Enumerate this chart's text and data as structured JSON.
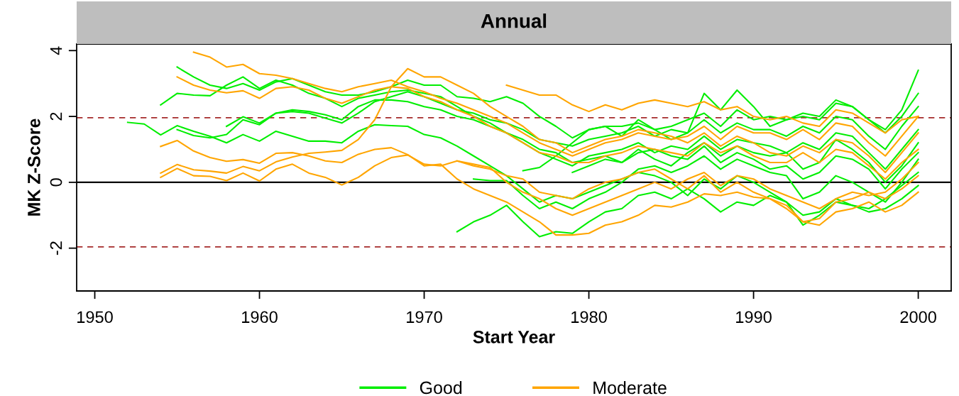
{
  "chart_data": {
    "type": "line",
    "title": "Annual",
    "xlabel": "Start Year",
    "ylabel": "MK Z-Score",
    "xlim": [
      1948.9,
      2002
    ],
    "xticks": [
      1950,
      1960,
      1970,
      1980,
      1990,
      2000
    ],
    "ylim": [
      -3.3,
      4.2
    ],
    "yticks": [
      -2,
      0,
      2,
      4
    ],
    "grid": false,
    "legend": "bottom",
    "marker": "none",
    "line_style": "solid",
    "ref_lines": [
      {
        "axis": "y",
        "value": 1.96,
        "color": "#a52a2a",
        "line_style": "dashed"
      },
      {
        "axis": "y",
        "value": 0,
        "color": "#000000",
        "line_style": "solid"
      },
      {
        "axis": "y",
        "value": -1.96,
        "color": "#a52a2a",
        "line_style": "dashed"
      }
    ],
    "series": [
      {
        "name": "Good",
        "color": "#00ee00",
        "x": [
          1955,
          1956,
          1957,
          1958,
          1959,
          1960,
          1961,
          1962,
          1963,
          1964,
          1965,
          1966,
          1967,
          1968,
          1969,
          1970,
          1971,
          1972,
          1973,
          1974,
          1975,
          1976,
          1977,
          1978,
          1979,
          1980,
          1981,
          1982,
          1983,
          1984,
          1985,
          1986,
          1987,
          1988,
          1989,
          1990,
          1991,
          1992,
          1993,
          1994,
          1995,
          1996,
          1997,
          1998,
          1999,
          2000
        ],
        "values": [
          3.5,
          3.2,
          2.95,
          2.85,
          3.0,
          2.8,
          3.05,
          3.15,
          2.95,
          2.75,
          2.65,
          2.65,
          2.75,
          2.9,
          3.1,
          2.95,
          2.95,
          2.6,
          2.55,
          2.45,
          2.6,
          2.4,
          2.0,
          1.7,
          1.35,
          1.6,
          1.7,
          1.7,
          1.8,
          1.6,
          1.7,
          1.9,
          2.1,
          1.7,
          2.2,
          1.9,
          2.0,
          1.9,
          2.0,
          1.9,
          2.4,
          2.3,
          1.9,
          1.6,
          2.2,
          3.4
        ]
      },
      {
        "color": "#00ee00",
        "x": [
          1954,
          1955,
          1956,
          1957,
          1958,
          1959,
          1960,
          1961,
          1962,
          1963,
          1964,
          1965,
          1966,
          1967,
          1968,
          1969,
          1970,
          1971,
          1972,
          1973,
          1974,
          1975,
          1976,
          1977,
          1978,
          1979,
          1980,
          1981,
          1982,
          1983,
          1984,
          1985,
          1986,
          1987,
          1988,
          1989,
          1990,
          1991,
          1992,
          1993,
          1994,
          1995,
          1996,
          1997,
          1998,
          1999,
          2000
        ],
        "values": [
          2.35,
          2.7,
          2.65,
          2.63,
          2.95,
          3.2,
          2.85,
          3.1,
          2.95,
          2.7,
          2.55,
          2.3,
          2.55,
          2.65,
          2.75,
          2.8,
          2.7,
          2.6,
          2.3,
          2.0,
          1.8,
          1.5,
          1.2,
          0.9,
          0.7,
          0.5,
          0.8,
          0.9,
          1.0,
          1.2,
          0.9,
          1.1,
          1.0,
          1.4,
          1.0,
          1.3,
          1.2,
          1.1,
          0.9,
          1.2,
          1.0,
          1.5,
          1.4,
          0.9,
          0.4,
          1.0,
          1.6
        ]
      },
      {
        "color": "#00ee00",
        "x": [
          1952,
          1953,
          1954,
          1955,
          1956,
          1957,
          1958,
          1959,
          1960,
          1961,
          1962,
          1963,
          1964,
          1965,
          1966,
          1967,
          1968,
          1969,
          1970,
          1971,
          1972,
          1973,
          1974,
          1975,
          1976,
          1977,
          1978,
          1979,
          1980,
          1981,
          1982,
          1983,
          1984,
          1985,
          1986,
          1987,
          1988,
          1989,
          1990,
          1991,
          1992,
          1993,
          1994,
          1995,
          1996,
          1997,
          1998,
          1999,
          2000
        ],
        "values": [
          1.82,
          1.77,
          1.44,
          1.72,
          1.55,
          1.4,
          1.2,
          1.45,
          1.25,
          1.55,
          1.4,
          1.25,
          1.25,
          1.2,
          1.55,
          1.75,
          1.72,
          1.7,
          1.45,
          1.35,
          1.1,
          0.8,
          0.5,
          0.2,
          -0.2,
          -0.6,
          -0.4,
          -0.5,
          -0.3,
          -0.1,
          0.1,
          0.3,
          0.2,
          0.0,
          -0.4,
          0.1,
          -0.2,
          0.2,
          0.0,
          -0.3,
          -0.6,
          -1.3,
          -1.0,
          -0.6,
          -0.7,
          -0.8,
          -0.5,
          -0.1,
          0.3
        ]
      },
      {
        "color": "#00ee00",
        "x": [
          1955,
          1956,
          1957,
          1958,
          1959,
          1960,
          1961,
          1962,
          1963,
          1964,
          1965,
          1966,
          1967,
          1968,
          1969,
          1970,
          1971,
          1972,
          1973,
          1974,
          1975,
          1976,
          1977,
          1978,
          1979,
          1980,
          1981,
          1982,
          1983,
          1984,
          1985,
          1986,
          1987,
          1988,
          1989,
          1990,
          1991,
          1992,
          1993,
          1994,
          1995,
          1996,
          1997,
          1998,
          1999,
          2000
        ],
        "values": [
          1.6,
          1.42,
          1.35,
          1.45,
          1.9,
          1.75,
          2.1,
          2.2,
          2.15,
          2.05,
          1.9,
          2.3,
          2.5,
          2.5,
          2.45,
          2.3,
          2.2,
          2.0,
          1.9,
          1.7,
          1.5,
          1.3,
          1.0,
          0.9,
          0.6,
          0.7,
          0.8,
          0.6,
          0.9,
          1.0,
          0.8,
          0.7,
          1.1,
          0.6,
          0.9,
          0.7,
          0.4,
          0.5,
          0.1,
          0.3,
          0.8,
          0.7,
          0.4,
          -0.2,
          0.4,
          0.9
        ]
      },
      {
        "color": "#00ee00",
        "x": [
          1958,
          1959,
          1960,
          1961,
          1962,
          1963,
          1964,
          1965,
          1966,
          1967,
          1968,
          1969,
          1970,
          1971,
          1972,
          1973,
          1974,
          1975,
          1976,
          1977,
          1978,
          1979,
          1980,
          1981,
          1982,
          1983,
          1984,
          1985,
          1986,
          1987,
          1988,
          1989,
          1990,
          1991,
          1992,
          1993,
          1994,
          1995,
          1996,
          1997,
          1998,
          1999,
          2000
        ],
        "values": [
          1.7,
          1.99,
          1.8,
          2.1,
          2.15,
          2.1,
          1.95,
          1.8,
          2.1,
          2.45,
          2.6,
          2.75,
          2.6,
          2.4,
          2.2,
          2.1,
          1.9,
          1.8,
          1.6,
          1.3,
          1.2,
          1.1,
          1.3,
          1.4,
          1.5,
          1.7,
          1.4,
          1.6,
          1.5,
          1.9,
          1.5,
          1.8,
          1.6,
          1.6,
          1.4,
          1.7,
          1.5,
          2.0,
          1.9,
          1.4,
          1.0,
          1.7,
          2.3
        ]
      },
      {
        "color": "#00ee00",
        "x": [
          1972,
          1973,
          1974,
          1975,
          1976,
          1977,
          1978,
          1979,
          1980,
          1981,
          1982,
          1983,
          1984,
          1985,
          1986,
          1987,
          1988,
          1989,
          1990,
          1991,
          1992,
          1993,
          1994,
          1995,
          1996,
          1997,
          1998,
          1999,
          2000
        ],
        "values": [
          -1.5,
          -1.2,
          -1.0,
          -0.7,
          -1.2,
          -1.65,
          -1.5,
          -1.55,
          -1.2,
          -0.9,
          -0.8,
          -0.4,
          -0.3,
          -0.5,
          -0.2,
          -0.5,
          -0.9,
          -0.6,
          -0.7,
          -0.4,
          -0.6,
          -1.0,
          -0.9,
          -0.5,
          -0.7,
          -0.9,
          -0.8,
          -0.5,
          -0.1
        ]
      },
      {
        "color": "#00ee00",
        "x": [
          1973,
          1974,
          1975,
          1976,
          1977,
          1978,
          1979,
          1980,
          1981,
          1982,
          1983,
          1984,
          1985,
          1986,
          1987,
          1988,
          1989,
          1990,
          1991,
          1992,
          1993,
          1994,
          1995,
          1996,
          1997,
          1998,
          1999,
          2000
        ],
        "values": [
          0.1,
          0.05,
          0.05,
          -0.4,
          -0.8,
          -0.6,
          -0.8,
          -0.5,
          -0.3,
          0.0,
          0.4,
          0.5,
          0.3,
          0.5,
          0.8,
          0.4,
          0.7,
          0.5,
          0.3,
          0.2,
          -0.5,
          -0.3,
          0.2,
          0.0,
          -0.3,
          -0.6,
          0.0,
          0.7
        ]
      },
      {
        "color": "#00ee00",
        "x": [
          1976,
          1977,
          1978,
          1979,
          1980,
          1981,
          1982,
          1983,
          1984,
          1985,
          1986,
          1987,
          1988,
          1989,
          1990,
          1991,
          1992,
          1993,
          1994,
          1995,
          1996,
          1997,
          1998,
          1999,
          2000
        ],
        "values": [
          0.35,
          0.45,
          0.8,
          1.2,
          1.6,
          1.7,
          1.4,
          1.9,
          1.6,
          1.3,
          1.5,
          2.7,
          2.2,
          2.8,
          2.3,
          1.7,
          1.9,
          2.1,
          2.0,
          2.5,
          2.3,
          1.9,
          1.5,
          2.0,
          2.7
        ]
      },
      {
        "color": "#00ee00",
        "x": [
          1979,
          1980,
          1981,
          1982,
          1983,
          1984,
          1985,
          1986,
          1987,
          1988,
          1989,
          1990,
          1991,
          1992,
          1993,
          1994,
          1995,
          1996,
          1997,
          1998,
          1999,
          2000
        ],
        "values": [
          0.3,
          0.5,
          0.7,
          0.6,
          1.0,
          0.7,
          0.5,
          0.9,
          1.2,
          0.8,
          1.1,
          0.9,
          0.8,
          0.9,
          0.4,
          0.6,
          1.3,
          1.0,
          0.6,
          0.0,
          0.5,
          1.2
        ]
      },
      {
        "name": "Moderate",
        "color": "#ffa500",
        "x": [
          1956,
          1957,
          1958,
          1959,
          1960,
          1961,
          1962,
          1963,
          1964,
          1965,
          1966,
          1967,
          1968,
          1969,
          1970,
          1971,
          1972,
          1973,
          1974,
          1975,
          1976,
          1977,
          1978,
          1979,
          1980,
          1981,
          1982,
          1983,
          1984,
          1985,
          1986,
          1987,
          1988,
          1989,
          1990,
          1991,
          1992,
          1993,
          1994,
          1995,
          1996,
          1997,
          1998,
          1999,
          2000
        ],
        "values": [
          3.95,
          3.8,
          3.5,
          3.58,
          3.3,
          3.25,
          3.15,
          3.0,
          2.85,
          2.75,
          2.9,
          3.0,
          3.1,
          2.9,
          2.75,
          2.55,
          2.4,
          2.2,
          2.0,
          1.8,
          1.5,
          1.2,
          1.0,
          0.8,
          1.0,
          1.2,
          1.3,
          1.5,
          1.4,
          1.3,
          1.4,
          1.7,
          1.3,
          1.7,
          1.5,
          1.5,
          1.3,
          1.6,
          1.3,
          1.8,
          1.7,
          1.2,
          0.8,
          1.4,
          2.0
        ]
      },
      {
        "color": "#ffa500",
        "x": [
          1955,
          1956,
          1957,
          1958,
          1959,
          1960,
          1961,
          1962,
          1963,
          1964,
          1965,
          1966,
          1967,
          1968,
          1969,
          1970,
          1971,
          1972,
          1973,
          1974,
          1975,
          1976,
          1977,
          1978,
          1979,
          1980,
          1981,
          1982,
          1983,
          1984,
          1985,
          1986,
          1987,
          1988,
          1989,
          1990,
          1991,
          1992,
          1993,
          1994,
          1995,
          1996,
          1997,
          1998,
          1999,
          2000
        ],
        "values": [
          3.2,
          2.95,
          2.8,
          2.72,
          2.78,
          2.55,
          2.85,
          2.9,
          2.8,
          2.55,
          2.4,
          2.6,
          2.8,
          2.9,
          2.85,
          2.6,
          2.45,
          2.2,
          2.0,
          1.7,
          1.5,
          1.2,
          0.9,
          0.8,
          0.6,
          0.6,
          0.8,
          0.9,
          1.1,
          1.0,
          0.9,
          0.8,
          1.2,
          0.9,
          1.1,
          0.8,
          0.6,
          0.6,
          0.9,
          0.6,
          1.0,
          0.9,
          0.5,
          0.1,
          0.6,
          1.0
        ]
      },
      {
        "color": "#ffa500",
        "x": [
          1954,
          1955,
          1956,
          1957,
          1958,
          1959,
          1960,
          1961,
          1962,
          1963,
          1964,
          1965,
          1966,
          1967,
          1968,
          1969,
          1970,
          1971,
          1972,
          1973,
          1974,
          1975,
          1976,
          1977,
          1978,
          1979,
          1980,
          1981,
          1982,
          1983,
          1984,
          1985,
          1986,
          1987,
          1988,
          1989,
          1990,
          1991,
          1992,
          1993,
          1994,
          1995,
          1996,
          1997,
          1998,
          1999,
          2000
        ],
        "values": [
          0.28,
          0.54,
          0.38,
          0.34,
          0.28,
          0.48,
          0.35,
          0.62,
          0.77,
          0.88,
          0.92,
          0.97,
          1.3,
          1.9,
          2.9,
          3.45,
          3.2,
          3.2,
          2.95,
          2.7,
          2.3,
          2.0,
          1.7,
          1.3,
          1.2,
          0.9,
          1.1,
          1.3,
          1.4,
          1.6,
          1.5,
          1.4,
          1.2,
          1.5,
          1.1,
          1.4,
          1.2,
          0.9,
          0.8,
          1.1,
          0.9,
          1.3,
          1.2,
          0.8,
          0.3,
          0.9,
          1.5
        ]
      },
      {
        "color": "#ffa500",
        "x": [
          1954,
          1955,
          1956,
          1957,
          1958,
          1959,
          1960,
          1961,
          1962,
          1963,
          1964,
          1965,
          1966,
          1967,
          1968,
          1969,
          1970,
          1971,
          1972,
          1973,
          1974,
          1975,
          1976,
          1977,
          1978,
          1979,
          1980,
          1981,
          1982,
          1983,
          1984,
          1985,
          1986,
          1987,
          1988,
          1989,
          1990,
          1991,
          1992,
          1993,
          1994,
          1995,
          1996,
          1997,
          1998,
          1999,
          2000
        ],
        "values": [
          1.09,
          1.27,
          0.95,
          0.75,
          0.64,
          0.69,
          0.58,
          0.88,
          0.9,
          0.8,
          0.65,
          0.6,
          0.85,
          1.0,
          1.05,
          0.84,
          0.5,
          0.55,
          0.1,
          -0.2,
          -0.4,
          -0.6,
          -0.9,
          -1.2,
          -1.6,
          -1.6,
          -1.55,
          -1.3,
          -1.2,
          -1.0,
          -0.7,
          -0.75,
          -0.6,
          -0.35,
          -0.4,
          -0.3,
          -0.45,
          -0.5,
          -0.7,
          -1.2,
          -1.3,
          -0.9,
          -0.8,
          -0.6,
          -0.9,
          -0.7,
          -0.3
        ]
      },
      {
        "color": "#ffa500",
        "x": [
          1954,
          1955,
          1956,
          1957,
          1958,
          1959,
          1960,
          1961,
          1962,
          1963,
          1964,
          1965,
          1966,
          1967,
          1968,
          1969,
          1970,
          1971,
          1972,
          1973,
          1974,
          1975,
          1976,
          1977,
          1978,
          1979,
          1980,
          1981,
          1982,
          1983,
          1984,
          1985,
          1986,
          1987,
          1988,
          1989,
          1990,
          1991,
          1992,
          1993,
          1994,
          1995,
          1996,
          1997,
          1998,
          1999,
          2000
        ],
        "values": [
          0.15,
          0.42,
          0.2,
          0.18,
          0.05,
          0.28,
          0.04,
          0.4,
          0.55,
          0.28,
          0.15,
          -0.08,
          0.15,
          0.5,
          0.75,
          0.83,
          0.55,
          0.5,
          0.65,
          0.5,
          0.4,
          0.2,
          0.1,
          -0.3,
          -0.4,
          -0.5,
          -0.2,
          0.0,
          0.1,
          0.3,
          0.4,
          0.1,
          -0.2,
          0.2,
          -0.3,
          0.0,
          -0.3,
          -0.5,
          -0.8,
          -1.2,
          -1.1,
          -0.6,
          -0.5,
          -0.3,
          -0.5,
          -0.2,
          0.2
        ]
      },
      {
        "color": "#ffa500",
        "x": [
          1975,
          1976,
          1977,
          1978,
          1979,
          1980,
          1981,
          1982,
          1983,
          1984,
          1985,
          1986,
          1987,
          1988,
          1989,
          1990,
          1991,
          1992,
          1993,
          1994,
          1995,
          1996,
          1997,
          1998,
          1999,
          2000
        ],
        "values": [
          2.95,
          2.8,
          2.65,
          2.65,
          2.35,
          2.15,
          2.35,
          2.2,
          2.4,
          2.5,
          2.4,
          2.3,
          2.45,
          2.2,
          2.3,
          2.0,
          1.9,
          2.0,
          1.8,
          1.7,
          2.2,
          2.1,
          1.8,
          1.5,
          1.9,
          2.0
        ]
      },
      {
        "color": "#ffa500",
        "x": [
          1972,
          1973,
          1974,
          1975,
          1976,
          1977,
          1978,
          1979,
          1980,
          1981,
          1982,
          1983,
          1984,
          1985,
          1986,
          1987,
          1988,
          1989,
          1990,
          1991,
          1992,
          1993,
          1994,
          1995,
          1996,
          1997,
          1998,
          1999,
          2000
        ],
        "values": [
          0.65,
          0.55,
          0.45,
          0.0,
          -0.3,
          -0.5,
          -0.8,
          -1.0,
          -0.8,
          -0.6,
          -0.4,
          -0.2,
          0.0,
          -0.2,
          0.1,
          0.3,
          -0.1,
          0.2,
          0.1,
          -0.2,
          -0.4,
          -0.6,
          -0.8,
          -0.5,
          -0.3,
          -0.4,
          -0.3,
          0.1,
          0.6
        ]
      }
    ]
  }
}
